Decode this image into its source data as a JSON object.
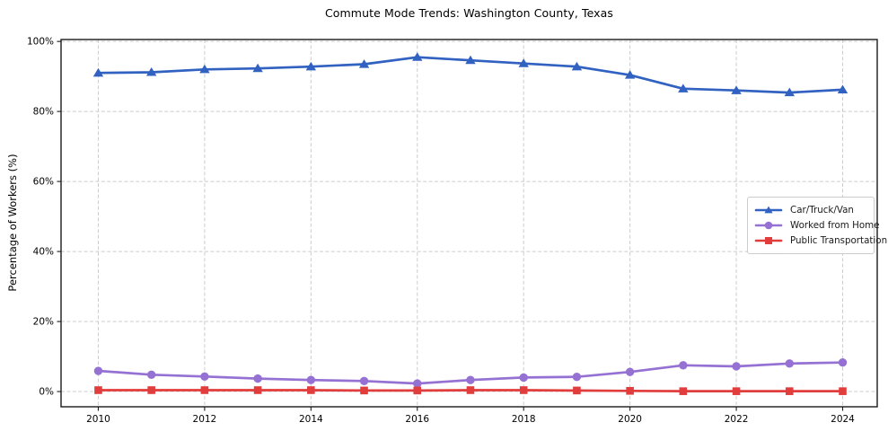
{
  "title": "Commute Mode Trends: Washington County, Texas",
  "ylabel": "Percentage of Workers (%)",
  "colors": {
    "car_truck_van": "#3161c1",
    "worked_from_home": "#9571d3",
    "public_transportation": "#e23d3d",
    "grid": "#cccccc",
    "frame": "#1a1a1a",
    "tick_text": "#000000"
  },
  "chart_data": {
    "type": "line",
    "title": "Commute Mode Trends: Washington County, Texas",
    "xlabel": "",
    "ylabel": "Percentage of Workers (%)",
    "x": [
      2010,
      2011,
      2012,
      2013,
      2014,
      2015,
      2016,
      2017,
      2018,
      2019,
      2020,
      2021,
      2022,
      2023,
      2024
    ],
    "series": [
      {
        "name": "Car/Truck/Van",
        "color": "#3161c1",
        "marker": "triangle",
        "values": [
          91.0,
          91.2,
          92.0,
          92.3,
          92.8,
          93.5,
          95.5,
          94.6,
          93.7,
          92.8,
          90.4,
          86.5,
          86.0,
          85.4,
          86.2
        ]
      },
      {
        "name": "Worked from Home",
        "color": "#9571d3",
        "marker": "circle",
        "values": [
          5.9,
          4.8,
          4.3,
          3.7,
          3.3,
          3.0,
          2.3,
          3.3,
          4.0,
          4.2,
          5.6,
          7.5,
          7.2,
          8.0,
          8.3
        ]
      },
      {
        "name": "Public Transportation",
        "color": "#e23d3d",
        "marker": "square",
        "values": [
          0.4,
          0.4,
          0.4,
          0.4,
          0.4,
          0.3,
          0.3,
          0.4,
          0.4,
          0.3,
          0.2,
          0.1,
          0.1,
          0.1,
          0.1
        ]
      }
    ],
    "xticks": [
      {
        "value": 2010,
        "label": "2010"
      },
      {
        "value": 2012,
        "label": "2012"
      },
      {
        "value": 2014,
        "label": "2014"
      },
      {
        "value": 2016,
        "label": "2016"
      },
      {
        "value": 2018,
        "label": "2018"
      },
      {
        "value": 2020,
        "label": "2020"
      },
      {
        "value": 2022,
        "label": "2022"
      },
      {
        "value": 2024,
        "label": "2024"
      }
    ],
    "yticks": [
      {
        "value": 0,
        "label": "0%"
      },
      {
        "value": 20,
        "label": "20%"
      },
      {
        "value": 40,
        "label": "40%"
      },
      {
        "value": 60,
        "label": "60%"
      },
      {
        "value": 80,
        "label": "80%"
      },
      {
        "value": 100,
        "label": "100%"
      }
    ],
    "xlim": [
      2009.3,
      2024.65
    ],
    "ylim": [
      -4.35,
      100.55
    ],
    "grid": true,
    "legend_position": "center right"
  }
}
